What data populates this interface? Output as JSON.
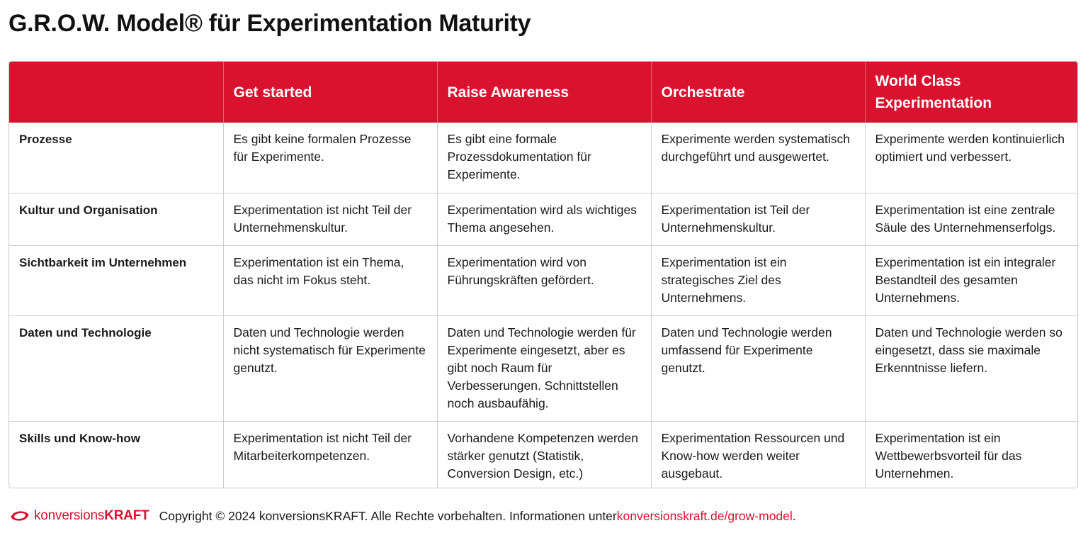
{
  "title": "G.R.O.W. Model® für Experimentation Maturity",
  "table": {
    "header": [
      "",
      "Get started",
      "Raise Awareness",
      "Orchestrate",
      "World Class Experimentation"
    ],
    "rows": [
      {
        "label": "Prozesse",
        "cells": [
          "Es  gibt keine formalen Prozesse für Experimente.",
          "Es gibt eine formale Prozessdokumentation für Experimente.",
          "Experimente werden systematisch durchgeführt und ausgewertet.",
          "Experimente werden kontinuierlich optimiert und verbessert."
        ]
      },
      {
        "label": "Kultur und Organisation",
        "cells": [
          "Experimentation ist nicht Teil der Unternehmenskultur.",
          "Experimentation wird als wichtiges Thema angesehen.",
          "Experimentation ist Teil der Unternehmenskultur.",
          "Experimentation ist eine zentrale Säule des Unternehmenserfolgs."
        ]
      },
      {
        "label": "Sichtbarkeit im Unternehmen",
        "cells": [
          "Experimentation ist ein Thema, das nicht im Fokus steht.",
          "Experimentation wird von Führungskräften gefördert.",
          "Experimentation ist ein strategisches Ziel des Unternehmens.",
          "Experimentation ist ein integraler Bestandteil des gesamten Unternehmens."
        ]
      },
      {
        "label": "Daten und Technologie",
        "cells": [
          "Daten und Technologie werden nicht systematisch für Experimente genutzt.",
          "Daten und Technologie werden für Experimente eingesetzt, aber es gibt noch Raum für Verbesserungen. Schnittstellen noch ausbaufähig.",
          "Daten und Technologie werden umfassend für Experimente genutzt.",
          "Daten und Technologie werden so eingesetzt, dass sie maximale Erkenntnisse liefern."
        ]
      },
      {
        "label": "Skills und Know-how",
        "cells": [
          "Experimentation ist nicht Teil der Mitarbeiterkompetenzen.",
          "Vorhandene Kompetenzen werden stärker genutzt (Statistik, Conversion Design, etc.)",
          "Experimentation Ressourcen und Know-how werden weiter ausgebaut.",
          "Experimentation ist ein Wettbewerbsvorteil für das Unternehmen."
        ]
      }
    ]
  },
  "footer": {
    "logo_light": "konversions",
    "logo_bold": "KRAFT",
    "copyright": "Copyright © 2024 konversionsKRAFT. Alle Rechte vorbehalten. Informationen unter ",
    "link": "konversionskraft.de/grow-model",
    "end": "."
  },
  "colors": {
    "accent": "#d8122f",
    "border": "#cfcfcf"
  },
  "icons": {
    "logo": "konversionskraft-swirl-icon"
  }
}
